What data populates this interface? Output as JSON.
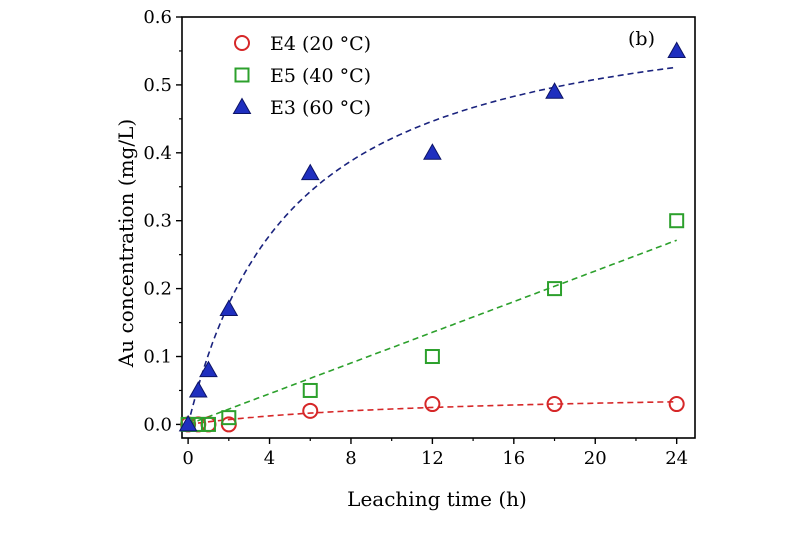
{
  "chart_data": {
    "type": "scatter",
    "panel_label": "(b)",
    "xlabel": "Leaching time (h)",
    "ylabel": "Au concentration (mg/L)",
    "xlim": [
      -0.3,
      24.9
    ],
    "ylim": [
      -0.02,
      0.6
    ],
    "xticks": [
      0,
      4,
      8,
      12,
      16,
      20,
      24
    ],
    "yticks": [
      0.0,
      0.1,
      0.2,
      0.3,
      0.4,
      0.5,
      0.6
    ],
    "xtick_labels": [
      "0",
      "4",
      "8",
      "12",
      "16",
      "20",
      "24"
    ],
    "ytick_labels": [
      "0.0",
      "0.1",
      "0.2",
      "0.3",
      "0.4",
      "0.5",
      "0.6"
    ],
    "grid": false,
    "legend_position": "top-left",
    "series": [
      {
        "name": "E4 (20 °C)",
        "marker": "circle-open",
        "color": "#d62728",
        "x": [
          0,
          0.5,
          1,
          2,
          6,
          12,
          18,
          24
        ],
        "y": [
          0.0,
          0.0,
          0.0,
          0.0,
          0.02,
          0.03,
          0.03,
          0.03
        ],
        "fit": "dashed"
      },
      {
        "name": "E5 (40 °C)",
        "marker": "square-open",
        "color": "#2ca02c",
        "x": [
          0,
          0.5,
          1,
          2,
          6,
          12,
          18,
          24
        ],
        "y": [
          0.0,
          0.0,
          0.0,
          0.01,
          0.05,
          0.1,
          0.2,
          0.3
        ],
        "fit": "dashed"
      },
      {
        "name": "E3 (60 °C)",
        "marker": "triangle-filled",
        "color": "#1f2fbf",
        "fit_color": "#1a237e",
        "x": [
          0,
          0.5,
          1,
          2,
          6,
          12,
          18,
          24
        ],
        "y": [
          0.0,
          0.05,
          0.08,
          0.17,
          0.37,
          0.4,
          0.49,
          0.55
        ],
        "fit": "dashed"
      }
    ]
  }
}
